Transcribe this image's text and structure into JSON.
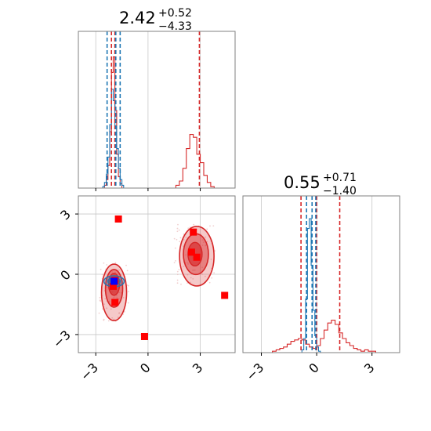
{
  "colors": {
    "red": "#d62728",
    "blue": "#1f77b4",
    "marker_red": "#ff0000",
    "marker_blue": "#0000ff",
    "grid": "#c8c8c8",
    "frame": "#808080"
  },
  "chart_data": [
    {
      "type": "histogram",
      "panel": "p1-marginal",
      "title": {
        "value": "2.42",
        "plus": "+0.52",
        "minus": "−4.33"
      },
      "xlim": [
        -4,
        5
      ],
      "ylim": [
        0,
        1
      ],
      "grid": true,
      "quantile_lines": {
        "red": [
          -2.1,
          -1.9,
          2.95
        ],
        "blue": [
          -2.35,
          -1.85,
          -1.6
        ]
      },
      "series": [
        {
          "color": "red",
          "bin_edges": [
            -2.5,
            -2.4,
            -2.3,
            -2.2,
            -2.1,
            -2.0,
            -1.9,
            -1.8,
            -1.7,
            -1.6,
            -1.5
          ],
          "heights": [
            0.02,
            0.06,
            0.16,
            0.4,
            0.82,
            0.93,
            0.55,
            0.24,
            0.08,
            0.03
          ],
          "extra_edges": [
            1.6,
            1.8,
            2.0,
            2.2,
            2.4,
            2.6,
            2.8,
            3.0,
            3.2,
            3.4,
            3.6,
            3.8
          ],
          "extra_heights": [
            0.02,
            0.05,
            0.14,
            0.28,
            0.38,
            0.36,
            0.24,
            0.18,
            0.09,
            0.04,
            0.01
          ]
        },
        {
          "color": "blue",
          "bin_edges": [
            -2.6,
            -2.5,
            -2.4,
            -2.3,
            -2.2,
            -2.1,
            -2.0,
            -1.9,
            -1.8,
            -1.7,
            -1.6,
            -1.5,
            -1.4
          ],
          "heights": [
            0.01,
            0.04,
            0.1,
            0.22,
            0.45,
            0.7,
            0.62,
            0.44,
            0.28,
            0.14,
            0.06,
            0.02
          ]
        }
      ]
    },
    {
      "type": "scatter-contour",
      "panel": "p1-vs-p2",
      "xlim": [
        -4,
        5
      ],
      "ylim": [
        -3.9,
        3.9
      ],
      "xticks": [
        "−3",
        "0",
        "3"
      ],
      "yticks": [
        "3",
        "0",
        "−3"
      ],
      "grid": true,
      "markers": {
        "red": [
          [
            -1.7,
            2.75
          ],
          [
            -1.9,
            -0.3
          ],
          [
            -2.0,
            -0.6
          ],
          [
            -1.9,
            -1.4
          ],
          [
            -0.2,
            -3.1
          ],
          [
            2.6,
            2.1
          ],
          [
            2.5,
            1.1
          ],
          [
            2.8,
            0.85
          ],
          [
            4.4,
            -1.05
          ]
        ],
        "blue": [
          [
            -1.95,
            -0.35
          ]
        ]
      }
    },
    {
      "type": "histogram",
      "panel": "p2-marginal",
      "title": {
        "value": "0.55",
        "plus": "+0.71",
        "minus": "−1.40"
      },
      "xlim": [
        -4,
        4.5
      ],
      "ylim": [
        0,
        1
      ],
      "xticks": [
        "−3",
        "0",
        "3"
      ],
      "grid": true,
      "quantile_lines": {
        "red": [
          -0.85,
          0.0,
          1.25
        ],
        "blue": [
          -0.55,
          -0.25,
          -0.05
        ]
      },
      "series": [
        {
          "color": "red",
          "bin_edges": [
            -2.4,
            -2.2,
            -2.0,
            -1.8,
            -1.6,
            -1.4,
            -1.2,
            -1.0,
            -0.8,
            -0.6,
            -0.4,
            -0.2,
            0.0,
            0.2,
            0.4,
            0.6,
            0.8,
            1.0,
            1.2,
            1.4,
            1.6,
            1.8,
            2.0,
            2.2,
            2.4,
            2.6,
            2.8,
            3.0,
            3.2
          ],
          "heights": [
            0.01,
            0.02,
            0.03,
            0.04,
            0.06,
            0.08,
            0.09,
            0.1,
            0.09,
            0.06,
            0.04,
            0.03,
            0.05,
            0.1,
            0.16,
            0.21,
            0.23,
            0.2,
            0.14,
            0.1,
            0.07,
            0.05,
            0.03,
            0.02,
            0.01,
            0.02,
            0.01,
            0.01
          ]
        },
        {
          "color": "blue",
          "bin_edges": [
            -0.8,
            -0.7,
            -0.6,
            -0.5,
            -0.4,
            -0.3,
            -0.2,
            -0.1,
            0.0,
            0.1,
            0.2
          ],
          "heights": [
            0.02,
            0.1,
            0.38,
            0.88,
            0.95,
            0.62,
            0.3,
            0.12,
            0.04,
            0.01
          ]
        }
      ]
    }
  ]
}
